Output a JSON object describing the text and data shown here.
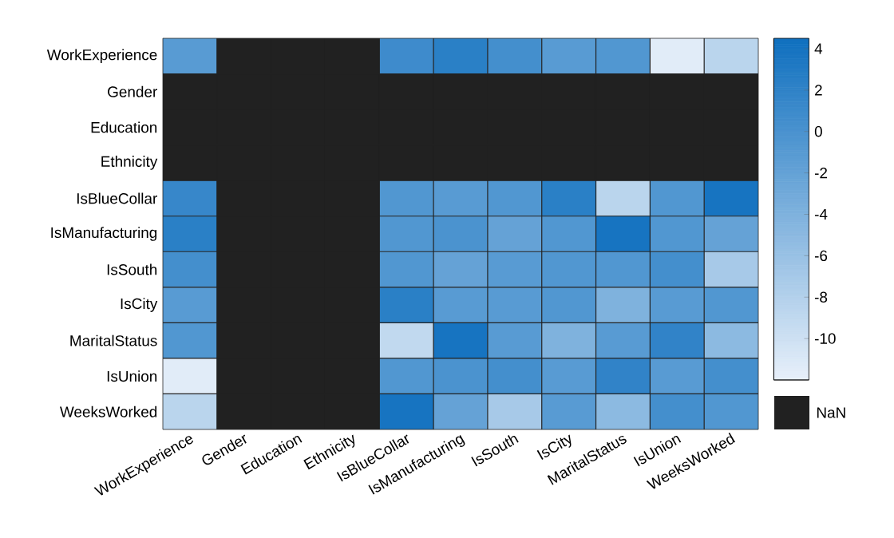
{
  "chart_data": {
    "type": "heatmap",
    "categories": [
      "WorkExperience",
      "Gender",
      "Education",
      "Ethnicity",
      "IsBlueCollar",
      "IsManufacturing",
      "IsSouth",
      "IsCity",
      "MaritalStatus",
      "IsUnion",
      "WeeksWorked"
    ],
    "y_categories": [
      "WorkExperience",
      "Gender",
      "Education",
      "Ethnicity",
      "IsBlueCollar",
      "IsManufacturing",
      "IsSouth",
      "IsCity",
      "MaritalStatus",
      "IsUnion",
      "WeeksWorked"
    ],
    "cells": [
      [
        -1,
        null,
        null,
        null,
        1,
        2.5,
        0.5,
        -1,
        -0.5,
        -11.5,
        -8.5
      ],
      [
        null,
        null,
        null,
        null,
        null,
        null,
        null,
        null,
        null,
        null,
        null
      ],
      [
        null,
        null,
        null,
        null,
        null,
        null,
        null,
        null,
        null,
        null,
        null
      ],
      [
        null,
        null,
        null,
        null,
        null,
        null,
        null,
        null,
        null,
        null,
        null
      ],
      [
        1.5,
        null,
        null,
        null,
        -0.5,
        -1,
        -0.5,
        2.5,
        -8.5,
        -0.5,
        4
      ],
      [
        2.5,
        null,
        null,
        null,
        -0.5,
        0,
        -2,
        -0.5,
        4,
        -0.5,
        -2
      ],
      [
        0.5,
        null,
        null,
        null,
        -0.5,
        -2,
        -1,
        -0.5,
        -0.5,
        0.5,
        -7
      ],
      [
        -1,
        null,
        null,
        null,
        2.5,
        -1,
        -1,
        -0.5,
        -4,
        -1,
        -0.5
      ],
      [
        -0.5,
        null,
        null,
        null,
        -9,
        4,
        -1,
        -4,
        -1,
        2,
        -5
      ],
      [
        -11.5,
        null,
        null,
        null,
        -0.5,
        0,
        0.5,
        -1,
        2,
        -1,
        0.5
      ],
      [
        -8.5,
        null,
        null,
        null,
        4,
        -2,
        -7,
        -1,
        -5,
        0.5,
        -0.5
      ]
    ],
    "clim": [
      -12,
      4.5
    ],
    "cticks": [
      4,
      2,
      0,
      -2,
      -4,
      -6,
      -8,
      -10
    ],
    "annotations": [
      "NaN"
    ]
  }
}
